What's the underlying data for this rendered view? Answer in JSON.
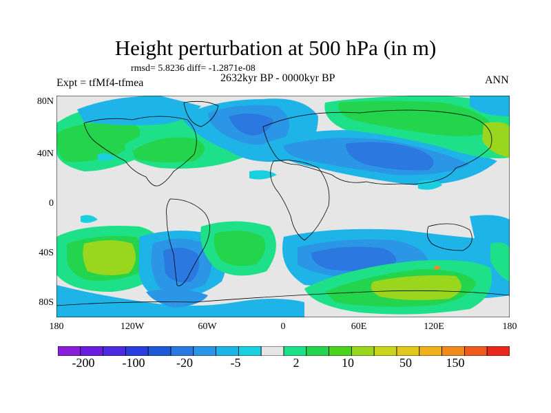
{
  "figure": {
    "title": "Height perturbation at 500 hPa (in m)",
    "stats": "rmsd= 5.8236 diff= -1.2871e-08",
    "left_label": "Expt = tfMf4-tfmea",
    "center_label": "2632kyr BP - 0000kyr BP",
    "right_label": "ANN"
  },
  "axes": {
    "lat_labels": [
      "80N",
      "40N",
      "0",
      "40S",
      "80S"
    ],
    "lon_labels": [
      "180",
      "120W",
      "60W",
      "0",
      "60E",
      "120E",
      "180"
    ]
  },
  "colorbar": {
    "colors": [
      "#8a1ed8",
      "#6a1ee0",
      "#4d2be0",
      "#2b3ee0",
      "#1e5ad8",
      "#2a78e0",
      "#2b95e6",
      "#1fb4e8",
      "#1ccfe0",
      "#e6e6e6",
      "#1ee088",
      "#24d44c",
      "#4ad21e",
      "#9ad61e",
      "#c8d41e",
      "#e0c81e",
      "#eeb01e",
      "#f08a1e",
      "#ef5a1e",
      "#e8281e"
    ],
    "labels": [
      "-200",
      "-100",
      "-20",
      "-5",
      "2",
      "10",
      "50",
      "150"
    ]
  },
  "map_data": {
    "type": "filled_contour_map",
    "projection": "cylindrical_equidistant",
    "background_color": "#e6e6e6",
    "color_scale": {
      "bright_green": "#24d44c",
      "yellow_green": "#9ad61e",
      "mint_green": "#1ee088",
      "cyan": "#1ccfe0",
      "light_blue": "#1fb4e8",
      "mid_blue": "#2b95e6",
      "deep_blue": "#2a78e0",
      "orange": "#f08a1e"
    },
    "coastline_color": "#000000"
  }
}
